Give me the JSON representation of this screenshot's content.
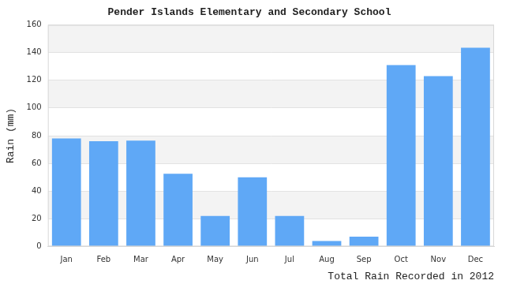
{
  "chart_data": {
    "type": "bar",
    "title": "Pender Islands Elementary and Secondary School",
    "x_label": "Total Rain Recorded in 2012",
    "y_label": "Rain (mm)",
    "categories": [
      "Jan",
      "Feb",
      "Mar",
      "Apr",
      "May",
      "Jun",
      "Jul",
      "Aug",
      "Sep",
      "Oct",
      "Nov",
      "Dec"
    ],
    "values": [
      78,
      76,
      76.5,
      52.5,
      22,
      50,
      22,
      4,
      7,
      131,
      123,
      143.5
    ],
    "color": "#5fa8f6",
    "ylim": [
      0,
      160
    ],
    "yticks": [
      0,
      20,
      40,
      60,
      80,
      100,
      120,
      140,
      160
    ],
    "grid": true
  }
}
